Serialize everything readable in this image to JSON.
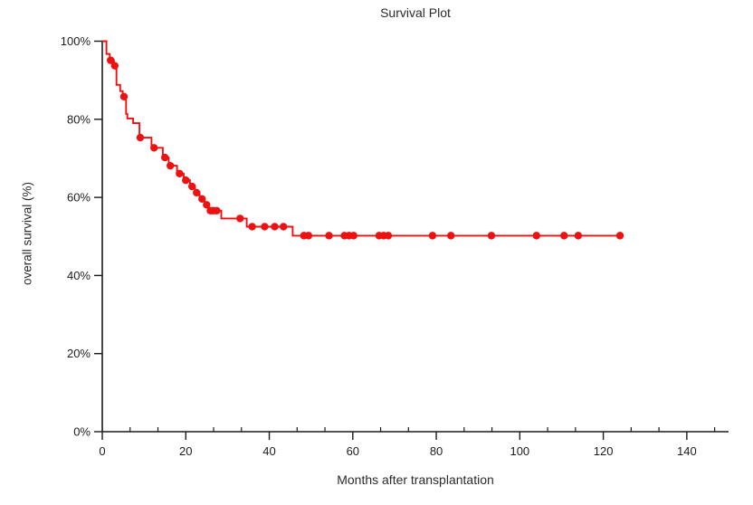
{
  "chart_data": {
    "type": "line",
    "subtype": "kaplan-meier-step",
    "title": "Survival Plot",
    "xlabel": "Months after transplantation",
    "ylabel": "overall survival (%)",
    "xlim": [
      0,
      150
    ],
    "ylim": [
      0,
      100
    ],
    "grid": false,
    "legend": "none",
    "x_major_ticks": [
      0,
      20,
      40,
      60,
      80,
      100,
      120,
      140
    ],
    "x_minor_ticks_per_major": 2,
    "y_major_ticks": [
      0,
      20,
      40,
      60,
      80,
      100
    ],
    "y_tick_labels": [
      "0%",
      "20%",
      "40%",
      "60%",
      "80%",
      "100%"
    ],
    "line_color": "#ee1111",
    "marker_color": "#ee1111",
    "axis_color": "#1a1a1a",
    "step_points": [
      [
        0,
        100
      ],
      [
        1,
        100
      ],
      [
        1,
        96.7
      ],
      [
        1.8,
        96.7
      ],
      [
        1.8,
        95.1
      ],
      [
        2.8,
        95.1
      ],
      [
        2.8,
        93.7
      ],
      [
        3.4,
        93.7
      ],
      [
        3.4,
        88.8
      ],
      [
        4.3,
        88.8
      ],
      [
        4.3,
        87.2
      ],
      [
        4.9,
        87.2
      ],
      [
        4.9,
        85.8
      ],
      [
        5.7,
        85.8
      ],
      [
        5.7,
        81.4
      ],
      [
        6.0,
        81.4
      ],
      [
        6.0,
        80.2
      ],
      [
        7.4,
        80.2
      ],
      [
        7.4,
        79.0
      ],
      [
        8.9,
        79.0
      ],
      [
        8.9,
        75.3
      ],
      [
        11.8,
        75.3
      ],
      [
        11.8,
        72.7
      ],
      [
        14.5,
        72.7
      ],
      [
        14.5,
        70.2
      ],
      [
        15.9,
        70.2
      ],
      [
        15.9,
        68.1
      ],
      [
        17.9,
        68.1
      ],
      [
        17.9,
        66.1
      ],
      [
        19.5,
        66.1
      ],
      [
        19.5,
        64.4
      ],
      [
        21.0,
        64.4
      ],
      [
        21.0,
        62.8
      ],
      [
        22.2,
        62.8
      ],
      [
        22.2,
        61.2
      ],
      [
        23.3,
        61.2
      ],
      [
        23.3,
        59.6
      ],
      [
        24.5,
        59.6
      ],
      [
        24.5,
        58.1
      ],
      [
        25.4,
        58.1
      ],
      [
        25.4,
        56.6
      ],
      [
        28.5,
        56.6
      ],
      [
        28.5,
        54.6
      ],
      [
        34.6,
        54.6
      ],
      [
        34.6,
        52.5
      ],
      [
        45.6,
        52.5
      ],
      [
        45.6,
        50.2
      ],
      [
        124,
        50.2
      ]
    ],
    "censor_markers": [
      [
        2.0,
        95.1
      ],
      [
        3.0,
        93.7
      ],
      [
        5.2,
        85.8
      ],
      [
        9.1,
        75.3
      ],
      [
        12.4,
        72.7
      ],
      [
        15.0,
        70.2
      ],
      [
        16.3,
        68.1
      ],
      [
        18.5,
        66.1
      ],
      [
        20.0,
        64.4
      ],
      [
        21.5,
        62.8
      ],
      [
        22.6,
        61.2
      ],
      [
        23.9,
        59.6
      ],
      [
        25.0,
        58.1
      ],
      [
        25.9,
        56.6
      ],
      [
        26.6,
        56.6
      ],
      [
        27.4,
        56.6
      ],
      [
        33.0,
        54.6
      ],
      [
        35.9,
        52.5
      ],
      [
        38.9,
        52.5
      ],
      [
        41.3,
        52.5
      ],
      [
        43.4,
        52.5
      ],
      [
        48.3,
        50.2
      ],
      [
        49.4,
        50.2
      ],
      [
        54.3,
        50.2
      ],
      [
        58.0,
        50.2
      ],
      [
        59.1,
        50.2
      ],
      [
        60.2,
        50.2
      ],
      [
        66.3,
        50.2
      ],
      [
        67.4,
        50.2
      ],
      [
        68.5,
        50.2
      ],
      [
        79.1,
        50.2
      ],
      [
        83.5,
        50.2
      ],
      [
        93.2,
        50.2
      ],
      [
        104.0,
        50.2
      ],
      [
        110.6,
        50.2
      ],
      [
        114.0,
        50.2
      ],
      [
        124.0,
        50.2
      ]
    ]
  }
}
